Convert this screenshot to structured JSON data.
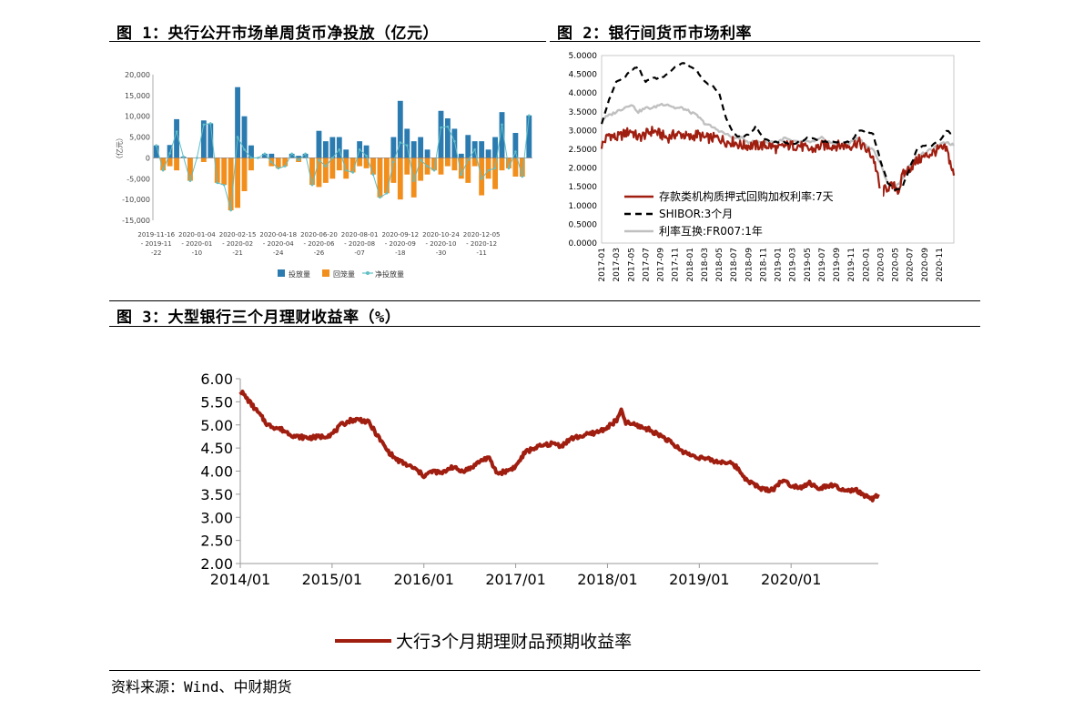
{
  "titles": {
    "fig1": "图 1：央行公开市场单周货币净投放（亿元）",
    "fig2": "图 2：银行间货币市场利率",
    "fig3": "图 3：大型银行三个月理财收益率（%）"
  },
  "source": "资料来源：Wind、中财期货",
  "colors": {
    "blue": "#2b7bb0",
    "orange": "#f28e1c",
    "teal": "#5fbfc6",
    "red": "#a01e10",
    "gray": "#c0c0c0",
    "black": "#000000"
  },
  "chart_data": [
    {
      "type": "bar",
      "title": "央行公开市场单周货币净投放（亿元）",
      "ylabel": "（亿元）",
      "ylim": [
        -15000,
        20000
      ],
      "yticks": [
        "20,000",
        "15,000",
        "10,000",
        "5,000",
        "0",
        "-5,000",
        "-10,000",
        "-15,000"
      ],
      "xtick_labels": [
        "2019-11-16 - 2019-11 -22",
        "2020-01-04 - 2020-01 -10",
        "2020-02-15 - 2020-02 -21",
        "2020-04-18 - 2020-04 -24",
        "2020-06-20 - 2020-06 -26",
        "2020-08-01 - 2020-08 -07",
        "2020-09-12 - 2020-09 -18",
        "2020-10-24 - 2020-10 -30",
        "2020-12-05 - 2020-12 -11"
      ],
      "xtick_lines": [
        [
          "2019-11-16",
          "- 2019-11",
          "-22"
        ],
        [
          "2020-01-04",
          "- 2020-01",
          "-10"
        ],
        [
          "2020-02-15",
          "- 2020-02",
          "-21"
        ],
        [
          "2020-04-18",
          "- 2020-04",
          "-24"
        ],
        [
          "2020-06-20",
          "- 2020-06",
          "-26"
        ],
        [
          "2020-08-01",
          "- 2020-08",
          "-07"
        ],
        [
          "2020-09-12",
          "- 2020-09",
          "-18"
        ],
        [
          "2020-10-24",
          "- 2020-10",
          "-30"
        ],
        [
          "2020-12-05",
          "- 2020-12",
          "-11"
        ]
      ],
      "xtick_every": 6,
      "series": [
        {
          "name": "投放量",
          "values": [
            3000,
            0,
            3100,
            9300,
            300,
            0,
            0,
            9000,
            8300,
            0,
            0,
            0,
            17000,
            10000,
            3000,
            0,
            1000,
            1000,
            0,
            0,
            1000,
            500,
            1000,
            0,
            6500,
            4000,
            5000,
            5000,
            2000,
            0,
            4000,
            3000,
            0,
            0,
            0,
            5000,
            13700,
            7000,
            4000,
            5000,
            2000,
            0,
            11300,
            9500,
            7000,
            1000,
            5500,
            4000,
            4000,
            2000,
            5000,
            11000,
            0,
            6000,
            0,
            10200
          ]
        },
        {
          "name": "回笼量",
          "values": [
            0,
            -3000,
            -2000,
            -3000,
            0,
            -5500,
            0,
            -1000,
            0,
            -6000,
            -6500,
            -12600,
            -12000,
            -8000,
            -3000,
            0,
            0,
            -2000,
            -2500,
            -2000,
            0,
            -1000,
            0,
            -6500,
            -7000,
            -6000,
            -5000,
            -3000,
            -5000,
            -3500,
            -2000,
            -2500,
            -4000,
            -9500,
            -8500,
            -6000,
            -10000,
            -4000,
            -9500,
            -5500,
            -4000,
            -3000,
            -4000,
            -2000,
            -3000,
            -5000,
            -6000,
            -2000,
            -9000,
            -5000,
            -7500,
            -3000,
            -2500,
            -4500,
            -4500,
            0
          ]
        },
        {
          "name": "净投放量",
          "values": [
            3000,
            -3000,
            1100,
            6300,
            300,
            -5500,
            0,
            8000,
            8300,
            -6000,
            -6500,
            -12600,
            5000,
            2000,
            0,
            0,
            1000,
            -1000,
            -2500,
            -2000,
            1000,
            -500,
            1000,
            -6500,
            -500,
            -2000,
            0,
            2000,
            -3000,
            -3500,
            2000,
            500,
            -4000,
            -9500,
            -8500,
            -1000,
            3700,
            3000,
            -5500,
            -500,
            -2000,
            -3000,
            7300,
            7500,
            4000,
            -4000,
            -500,
            2000,
            -5000,
            -3000,
            -2500,
            8000,
            -2500,
            1500,
            -4500,
            10200
          ]
        }
      ],
      "legend": [
        "投放量",
        "回笼量",
        "净投放量"
      ],
      "legend_position": "bottom"
    },
    {
      "type": "line",
      "title": "银行间货币市场利率",
      "ylim": [
        0,
        5
      ],
      "yticks": [
        "5.0000",
        "4.5000",
        "4.0000",
        "3.5000",
        "3.0000",
        "2.5000",
        "2.0000",
        "1.5000",
        "1.0000",
        "0.5000",
        "0.0000"
      ],
      "xtick_labels": [
        "2017-01",
        "2017-03",
        "2017-05",
        "2017-07",
        "2017-09",
        "2017-11",
        "2018-01",
        "2018-03",
        "2018-05",
        "2018-07",
        "2018-09",
        "2018-11",
        "2019-01",
        "2019-03",
        "2019-05",
        "2019-07",
        "2019-09",
        "2019-11",
        "2020-01",
        "2020-03",
        "2020-05",
        "2020-07",
        "2020-09",
        "2020-11"
      ],
      "x_months_span": [
        0,
        48
      ],
      "series": [
        {
          "name": "存款类机构质押式回购加权利率:7天",
          "months": [
            0,
            1,
            2,
            3,
            4,
            5,
            6,
            7,
            8,
            9,
            10,
            11,
            12,
            13,
            14,
            15,
            16,
            17,
            18,
            19,
            20,
            21,
            22,
            23,
            24,
            25,
            26,
            27,
            28,
            29,
            30,
            31,
            32,
            33,
            34,
            35,
            36,
            37,
            37.5,
            38,
            39,
            40,
            40.5,
            41,
            42,
            43,
            44,
            45,
            46,
            47,
            48
          ],
          "values": [
            2.6,
            2.9,
            2.8,
            2.9,
            3.0,
            2.8,
            2.9,
            3.0,
            2.9,
            2.8,
            2.9,
            2.9,
            2.8,
            2.9,
            2.8,
            2.8,
            2.8,
            2.7,
            2.7,
            2.6,
            2.6,
            2.6,
            2.6,
            2.6,
            2.5,
            2.6,
            2.6,
            2.6,
            2.5,
            2.5,
            2.6,
            2.6,
            2.6,
            2.6,
            2.6,
            2.7,
            2.5,
            2.3,
            1.9,
            1.3,
            1.5,
            1.5,
            1.4,
            1.8,
            2.0,
            2.2,
            2.3,
            2.4,
            2.5,
            2.5,
            1.8
          ]
        },
        {
          "name": "SHIBOR:3个月",
          "months": [
            0,
            1,
            2,
            3,
            4,
            5,
            6,
            7,
            8,
            9,
            10,
            11,
            12,
            13,
            14,
            15,
            16,
            17,
            18,
            19,
            20,
            21,
            22,
            23,
            24,
            25,
            26,
            27,
            28,
            29,
            30,
            31,
            32,
            33,
            34,
            35,
            36,
            37,
            38,
            39,
            40,
            41,
            42,
            43,
            44,
            45,
            46,
            47,
            48
          ],
          "values": [
            3.2,
            3.8,
            4.3,
            4.4,
            4.6,
            4.7,
            4.3,
            4.4,
            4.4,
            4.5,
            4.7,
            4.8,
            4.7,
            4.6,
            4.3,
            4.2,
            4.0,
            3.3,
            2.9,
            2.8,
            2.9,
            3.1,
            2.8,
            2.7,
            2.7,
            2.7,
            2.6,
            2.7,
            2.8,
            2.8,
            2.7,
            2.7,
            2.7,
            2.7,
            2.7,
            3.0,
            3.0,
            2.9,
            2.2,
            1.6,
            1.4,
            1.5,
            2.0,
            2.5,
            2.6,
            2.6,
            2.7,
            3.0,
            2.9
          ]
        },
        {
          "name": "利率互换:FR007:1年",
          "months": [
            0,
            1,
            2,
            3,
            4,
            5,
            6,
            7,
            8,
            9,
            10,
            11,
            12,
            13,
            14,
            15,
            16,
            17,
            18,
            19,
            20,
            21,
            22,
            23,
            24,
            25,
            26,
            27,
            28,
            29,
            30,
            31,
            32,
            33,
            34,
            35,
            36,
            37,
            38,
            39,
            40,
            41,
            42,
            43,
            44,
            45,
            46,
            47,
            48
          ],
          "values": [
            3.3,
            3.4,
            3.5,
            3.6,
            3.7,
            3.5,
            3.6,
            3.6,
            3.7,
            3.7,
            3.6,
            3.6,
            3.5,
            3.4,
            3.2,
            3.1,
            3.0,
            2.9,
            2.8,
            2.8,
            2.7,
            2.7,
            2.7,
            2.7,
            2.7,
            2.8,
            2.7,
            2.7,
            2.7,
            2.7,
            2.8,
            2.7,
            2.6,
            2.6,
            2.7,
            2.8,
            2.6,
            2.5,
            2.1,
            1.6,
            1.5,
            1.7,
            2.1,
            2.3,
            2.4,
            2.5,
            2.6,
            2.7,
            2.6
          ]
        }
      ],
      "legend_position": "bottom-left"
    },
    {
      "type": "line",
      "title": "大型银行三个月理财收益率（%）",
      "ylim": [
        2.0,
        6.0
      ],
      "yticks": [
        "6.00",
        "5.50",
        "5.00",
        "4.50",
        "4.00",
        "3.50",
        "3.00",
        "2.50",
        "2.00"
      ],
      "xtick_labels": [
        "2014/01",
        "2015/01",
        "2016/01",
        "2017/01",
        "2018/01",
        "2019/01",
        "2020/01"
      ],
      "x_years_span": [
        2014.0,
        2020.95
      ],
      "series": [
        {
          "name": "大行3个月期理财品预期收益率",
          "x": [
            2014.0,
            2014.1,
            2014.2,
            2014.3,
            2014.45,
            2014.6,
            2014.75,
            2014.9,
            2015.0,
            2015.1,
            2015.2,
            2015.3,
            2015.4,
            2015.5,
            2015.6,
            2015.7,
            2015.8,
            2015.9,
            2016.0,
            2016.1,
            2016.2,
            2016.3,
            2016.4,
            2016.5,
            2016.6,
            2016.7,
            2016.8,
            2016.9,
            2017.0,
            2017.1,
            2017.2,
            2017.3,
            2017.4,
            2017.5,
            2017.6,
            2017.7,
            2017.8,
            2017.9,
            2018.0,
            2018.1,
            2018.15,
            2018.2,
            2018.3,
            2018.45,
            2018.6,
            2018.7,
            2018.8,
            2018.9,
            2019.0,
            2019.1,
            2019.2,
            2019.3,
            2019.4,
            2019.5,
            2019.6,
            2019.7,
            2019.8,
            2019.9,
            2020.0,
            2020.1,
            2020.2,
            2020.3,
            2020.4,
            2020.5,
            2020.6,
            2020.7,
            2020.8,
            2020.9,
            2020.95
          ],
          "values": [
            5.75,
            5.5,
            5.25,
            5.0,
            4.9,
            4.75,
            4.72,
            4.75,
            4.8,
            5.0,
            5.1,
            5.12,
            5.05,
            4.75,
            4.45,
            4.25,
            4.15,
            4.05,
            3.9,
            4.0,
            3.95,
            4.1,
            4.0,
            4.05,
            4.2,
            4.3,
            3.95,
            4.0,
            4.1,
            4.4,
            4.5,
            4.55,
            4.6,
            4.55,
            4.7,
            4.75,
            4.8,
            4.85,
            4.95,
            5.1,
            5.3,
            5.05,
            5.0,
            4.9,
            4.75,
            4.6,
            4.45,
            4.35,
            4.3,
            4.25,
            4.2,
            4.2,
            4.1,
            3.85,
            3.7,
            3.6,
            3.6,
            3.8,
            3.7,
            3.65,
            3.75,
            3.6,
            3.7,
            3.65,
            3.55,
            3.6,
            3.45,
            3.4,
            3.5
          ]
        }
      ],
      "legend": [
        "大行3个月期理财品预期收益率"
      ],
      "legend_position": "bottom"
    }
  ]
}
